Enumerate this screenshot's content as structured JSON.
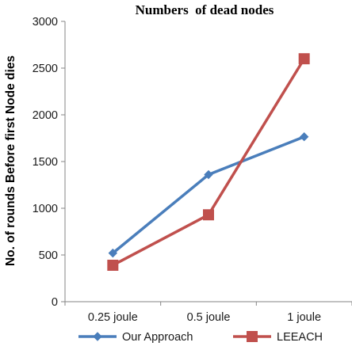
{
  "chart_data": {
    "type": "line",
    "title": "Numbers  of dead nodes",
    "xlabel": "",
    "ylabel": "No. of rounds Before first Node dies",
    "categories": [
      "0.25 joule",
      "0.5 joule",
      "1 joule"
    ],
    "ylim": [
      0,
      3000
    ],
    "yticks": [
      0,
      500,
      1000,
      1500,
      2000,
      2500,
      3000
    ],
    "grid": false,
    "legend_position": "bottom",
    "series": [
      {
        "name": "Our Approach",
        "values": [
          520,
          1360,
          1765
        ],
        "color": "#4a7ebb",
        "marker": "diamond"
      },
      {
        "name": "LEEACH",
        "values": [
          390,
          930,
          2600
        ],
        "color": "#c0504d",
        "marker": "square"
      }
    ]
  }
}
